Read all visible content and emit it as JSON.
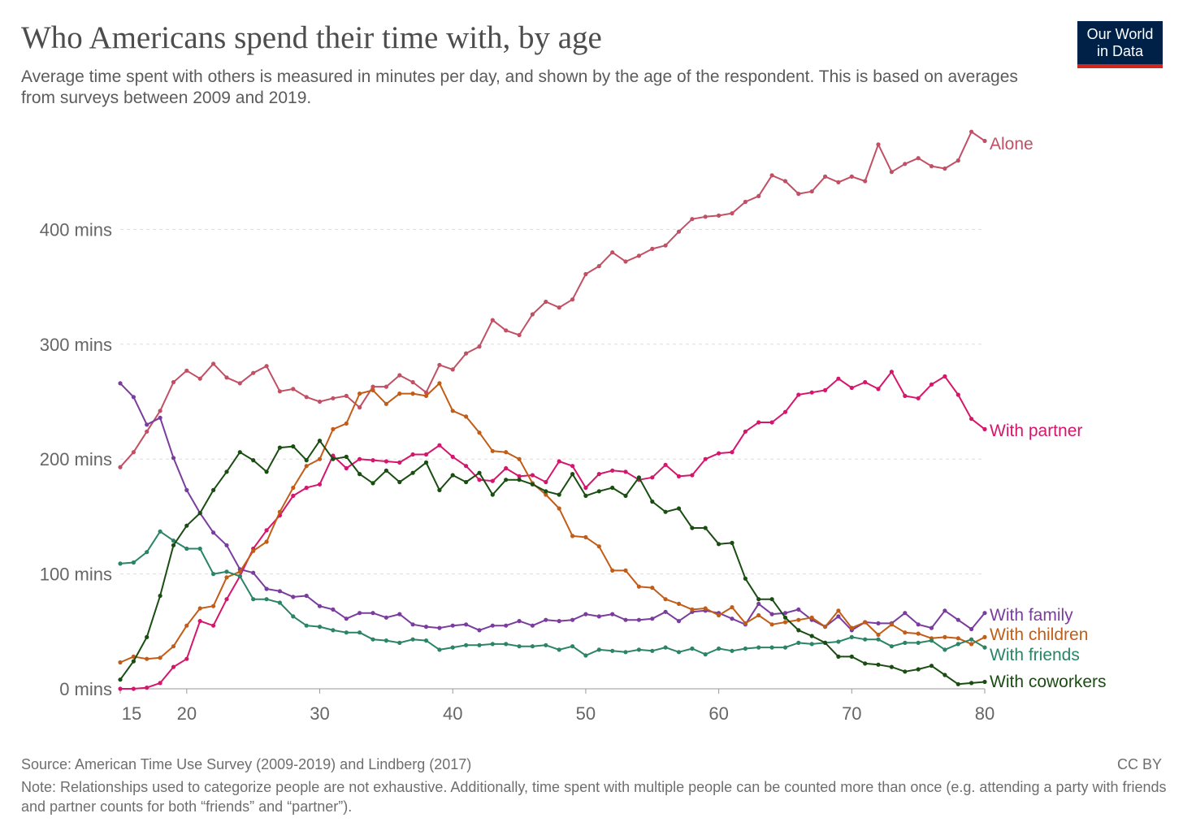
{
  "header": {
    "title": "Who Americans spend their time with, by age",
    "subtitle": "Average time spent with others is measured in minutes per day, and shown by the age of the respondent. This is based on averages from surveys between 2009 and 2019.",
    "logo_line1": "Our World",
    "logo_line2": "in Data"
  },
  "footer": {
    "source": "Source: American Time Use Survey (2009-2019) and Lindberg (2017)",
    "license": "CC BY",
    "note": "Note: Relationships used to categorize people are not exhaustive. Additionally, time spent with multiple people can be counted more than once (e.g. attending a party with friends and partner counts for both “friends” and “partner”)."
  },
  "chart_data": {
    "type": "line",
    "title": "Who Americans spend their time with, by age",
    "xlabel": "",
    "ylabel": "",
    "xlim": [
      15,
      80
    ],
    "ylim": [
      0,
      480
    ],
    "x_ticks": [
      15,
      20,
      30,
      40,
      50,
      60,
      70,
      80
    ],
    "y_ticks": [
      {
        "value": 0,
        "label": "0 mins"
      },
      {
        "value": 100,
        "label": "100 mins"
      },
      {
        "value": 200,
        "label": "200 mins"
      },
      {
        "value": 300,
        "label": "300 mins"
      },
      {
        "value": 400,
        "label": "400 mins"
      }
    ],
    "grid": true,
    "legend": "inline-right",
    "x": [
      15,
      16,
      17,
      18,
      19,
      20,
      21,
      22,
      23,
      24,
      25,
      26,
      27,
      28,
      29,
      30,
      31,
      32,
      33,
      34,
      35,
      36,
      37,
      38,
      39,
      40,
      41,
      42,
      43,
      44,
      45,
      46,
      47,
      48,
      49,
      50,
      51,
      52,
      53,
      54,
      55,
      56,
      57,
      58,
      59,
      60,
      61,
      62,
      63,
      64,
      65,
      66,
      67,
      68,
      69,
      70,
      71,
      72,
      73,
      74,
      75,
      76,
      77,
      78,
      79,
      80
    ],
    "series": [
      {
        "name": "Alone",
        "color": "#c15065",
        "values": [
          193,
          206,
          224,
          242,
          267,
          277,
          270,
          283,
          271,
          266,
          275,
          281,
          259,
          261,
          254,
          250,
          253,
          255,
          245,
          263,
          263,
          273,
          267,
          258,
          282,
          278,
          292,
          298,
          321,
          312,
          308,
          326,
          337,
          332,
          339,
          361,
          368,
          380,
          372,
          377,
          383,
          386,
          398,
          409,
          411,
          412,
          414,
          424,
          429,
          447,
          442,
          431,
          433,
          446,
          441,
          446,
          442,
          474,
          450,
          457,
          462,
          455,
          453,
          460,
          485,
          477
        ]
      },
      {
        "name": "With partner",
        "color": "#d5166c",
        "values": [
          0,
          0,
          1,
          5,
          19,
          26,
          59,
          55,
          78,
          98,
          122,
          138,
          151,
          168,
          175,
          178,
          203,
          192,
          200,
          199,
          198,
          197,
          204,
          204,
          212,
          202,
          194,
          182,
          181,
          192,
          185,
          186,
          180,
          198,
          194,
          175,
          187,
          190,
          189,
          182,
          184,
          195,
          185,
          186,
          200,
          205,
          206,
          224,
          232,
          232,
          241,
          256,
          258,
          260,
          270,
          262,
          267,
          261,
          276,
          255,
          253,
          265,
          272,
          256,
          235,
          226
        ]
      },
      {
        "name": "With family",
        "color": "#7a3d9e",
        "values": [
          266,
          254,
          230,
          236,
          201,
          173,
          153,
          136,
          125,
          104,
          101,
          87,
          85,
          80,
          81,
          72,
          69,
          61,
          66,
          66,
          62,
          65,
          56,
          54,
          53,
          55,
          56,
          51,
          55,
          55,
          59,
          55,
          60,
          59,
          60,
          65,
          63,
          65,
          60,
          60,
          61,
          67,
          59,
          67,
          68,
          66,
          61,
          56,
          74,
          65,
          66,
          69,
          60,
          54,
          63,
          51,
          58,
          57,
          57,
          66,
          56,
          53,
          68,
          60,
          52,
          66
        ]
      },
      {
        "name": "With children",
        "color": "#c25d17",
        "values": [
          23,
          28,
          26,
          27,
          37,
          55,
          70,
          72,
          97,
          102,
          120,
          128,
          154,
          175,
          194,
          200,
          226,
          231,
          257,
          260,
          248,
          257,
          257,
          255,
          266,
          242,
          237,
          223,
          207,
          206,
          200,
          179,
          169,
          157,
          133,
          132,
          124,
          103,
          103,
          89,
          88,
          78,
          74,
          69,
          70,
          64,
          71,
          57,
          64,
          56,
          58,
          60,
          62,
          54,
          68,
          53,
          58,
          47,
          56,
          49,
          48,
          44,
          45,
          44,
          39,
          45
        ]
      },
      {
        "name": "With friends",
        "color": "#2b8465",
        "values": [
          109,
          110,
          119,
          137,
          129,
          122,
          122,
          100,
          102,
          98,
          78,
          78,
          75,
          63,
          55,
          54,
          51,
          49,
          49,
          43,
          42,
          40,
          43,
          42,
          34,
          36,
          38,
          38,
          39,
          39,
          37,
          37,
          38,
          34,
          37,
          29,
          34,
          33,
          32,
          34,
          33,
          36,
          32,
          35,
          30,
          35,
          33,
          35,
          36,
          36,
          36,
          40,
          39,
          40,
          41,
          45,
          43,
          43,
          37,
          40,
          40,
          42,
          34,
          39,
          43,
          36
        ]
      },
      {
        "name": "With coworkers",
        "color": "#1a4d12",
        "values": [
          8,
          24,
          45,
          81,
          125,
          142,
          153,
          173,
          189,
          206,
          199,
          189,
          210,
          211,
          199,
          216,
          200,
          202,
          187,
          179,
          190,
          180,
          188,
          197,
          173,
          186,
          180,
          188,
          169,
          182,
          182,
          178,
          172,
          169,
          187,
          168,
          172,
          175,
          168,
          184,
          163,
          154,
          157,
          140,
          140,
          126,
          127,
          96,
          78,
          78,
          62,
          51,
          46,
          40,
          28,
          28,
          22,
          21,
          19,
          15,
          17,
          20,
          12,
          4,
          5,
          6
        ]
      }
    ]
  }
}
